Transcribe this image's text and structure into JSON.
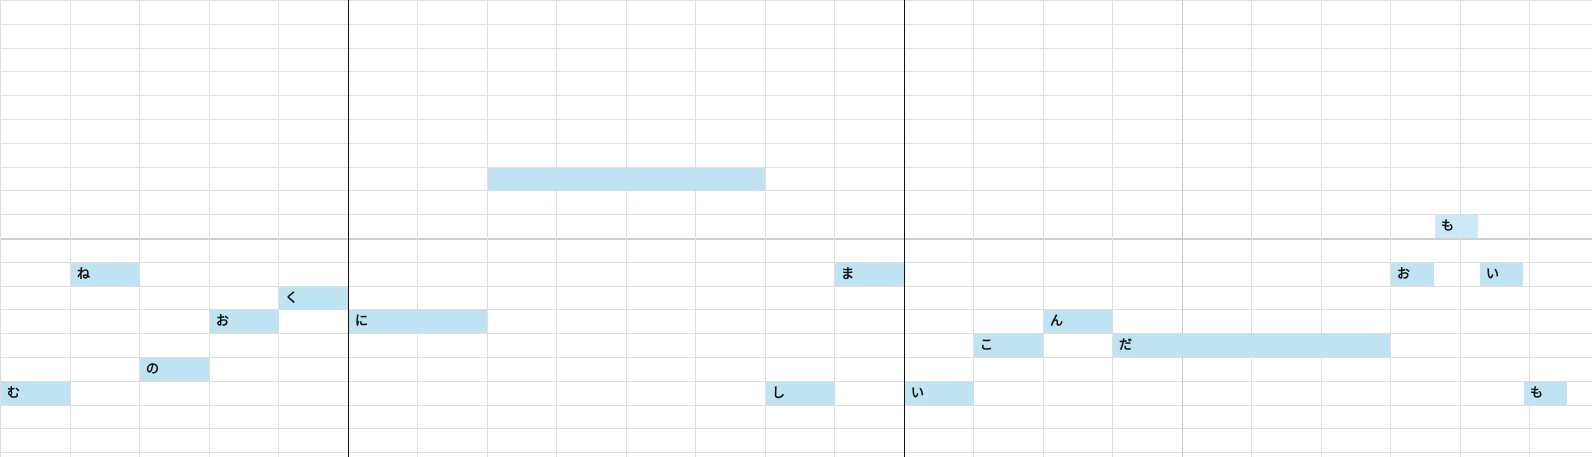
{
  "piano_roll": {
    "colors": {
      "note_fill": "#bfe3f3",
      "note_fill_light": "#cceaf6",
      "grid": "#dedede",
      "bar_line": "#111111"
    },
    "notes": [
      {
        "lyric": "む",
        "beat": 0,
        "duration": 1,
        "pitch_row": 16
      },
      {
        "lyric": "ね",
        "beat": 1,
        "duration": 1,
        "pitch_row": 11
      },
      {
        "lyric": "の",
        "beat": 2,
        "duration": 1,
        "pitch_row": 15
      },
      {
        "lyric": "お",
        "beat": 3,
        "duration": 1,
        "pitch_row": 13
      },
      {
        "lyric": "く",
        "beat": 4,
        "duration": 1,
        "pitch_row": 12
      },
      {
        "lyric": "に",
        "beat": 5,
        "duration": 2,
        "pitch_row": 13
      },
      {
        "lyric": "",
        "beat": 7,
        "duration": 4,
        "pitch_row": 7
      },
      {
        "lyric": "し",
        "beat": 11,
        "duration": 1,
        "pitch_row": 16
      },
      {
        "lyric": "ま",
        "beat": 12,
        "duration": 1,
        "pitch_row": 11
      },
      {
        "lyric": "い",
        "beat": 13,
        "duration": 1,
        "pitch_row": 16
      },
      {
        "lyric": "こ",
        "beat": 14,
        "duration": 1,
        "pitch_row": 14
      },
      {
        "lyric": "ん",
        "beat": 15,
        "duration": 1,
        "pitch_row": 13
      },
      {
        "lyric": "だ",
        "beat": 16,
        "duration": 4,
        "pitch_row": 14
      },
      {
        "lyric": "お",
        "beat": 20,
        "duration": 0.64,
        "pitch_row": 11
      },
      {
        "lyric": "も",
        "beat": 20.64,
        "duration": 0.64,
        "pitch_row": 9,
        "light": true
      },
      {
        "lyric": "い",
        "beat": 21.28,
        "duration": 0.64,
        "pitch_row": 11
      },
      {
        "lyric": "も",
        "beat": 21.92,
        "duration": 0.64,
        "pitch_row": 16
      }
    ]
  }
}
